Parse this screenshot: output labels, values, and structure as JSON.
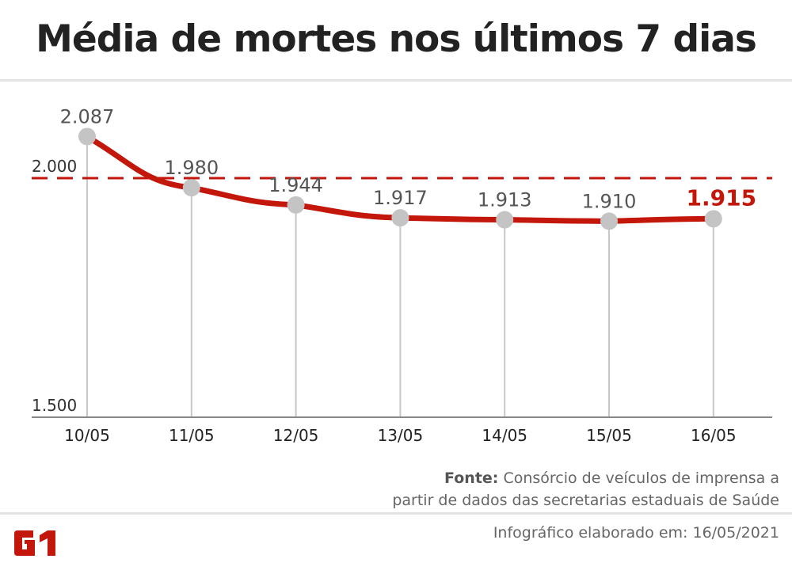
{
  "title": "Média de mortes nos últimos 7 dias",
  "source_label": "Fonte:",
  "source_text_line1": "Consórcio de veículos de imprensa a",
  "source_text_line2": "partir de dados das secretarias estaduais de Saúde",
  "made_on": "Infográfico elaborado em: 16/05/2021",
  "logo_text": "G1",
  "colors": {
    "line": "#c4170c",
    "dot": "#c4c4c4",
    "text": "#555555"
  },
  "chart_data": {
    "type": "line",
    "title": "Média de mortes nos últimos 7 dias",
    "categories": [
      "10/05",
      "11/05",
      "12/05",
      "13/05",
      "14/05",
      "15/05",
      "16/05"
    ],
    "values": [
      2087,
      1980,
      1944,
      1917,
      1913,
      1910,
      1915
    ],
    "value_labels": [
      "2.087",
      "1.980",
      "1.944",
      "1.917",
      "1.913",
      "1.910",
      "1.915"
    ],
    "y_ticks": [
      {
        "value": 1500,
        "label": "1.500"
      },
      {
        "value": 2000,
        "label": "2.000"
      }
    ],
    "reference_line": 2000,
    "ylim": [
      1500,
      2100
    ],
    "highlight_last": true
  }
}
